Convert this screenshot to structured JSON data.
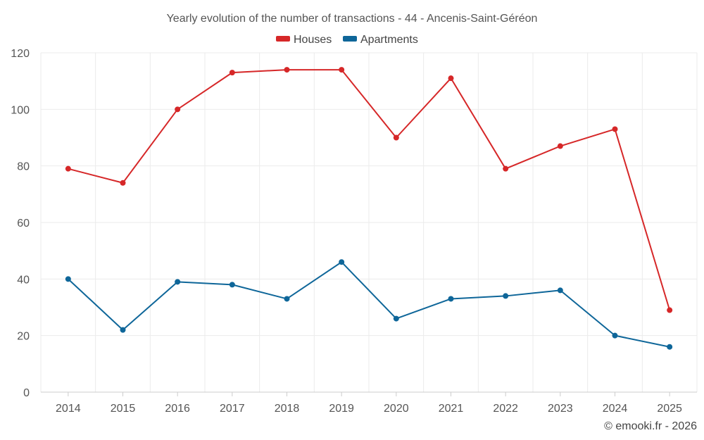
{
  "chart_data": {
    "type": "line",
    "title": "Yearly evolution of the number of transactions - 44 - Ancenis-Saint-Géréon",
    "categories": [
      "2014",
      "2015",
      "2016",
      "2017",
      "2018",
      "2019",
      "2020",
      "2021",
      "2022",
      "2023",
      "2024",
      "2025"
    ],
    "series": [
      {
        "name": "Houses",
        "color": "#d62728",
        "values": [
          79,
          74,
          100,
          113,
          114,
          114,
          90,
          111,
          79,
          87,
          93,
          29
        ]
      },
      {
        "name": "Apartments",
        "color": "#0e6699",
        "values": [
          40,
          22,
          39,
          38,
          33,
          46,
          26,
          33,
          34,
          36,
          20,
          16
        ]
      }
    ],
    "yticks": [
      "0",
      "20",
      "40",
      "60",
      "80",
      "100",
      "120"
    ],
    "ylim": [
      0,
      120
    ],
    "xlabel": "",
    "ylabel": "",
    "grid": true,
    "legend_position": "top-center"
  },
  "footer": {
    "credit": "© emooki.fr - 2026"
  }
}
